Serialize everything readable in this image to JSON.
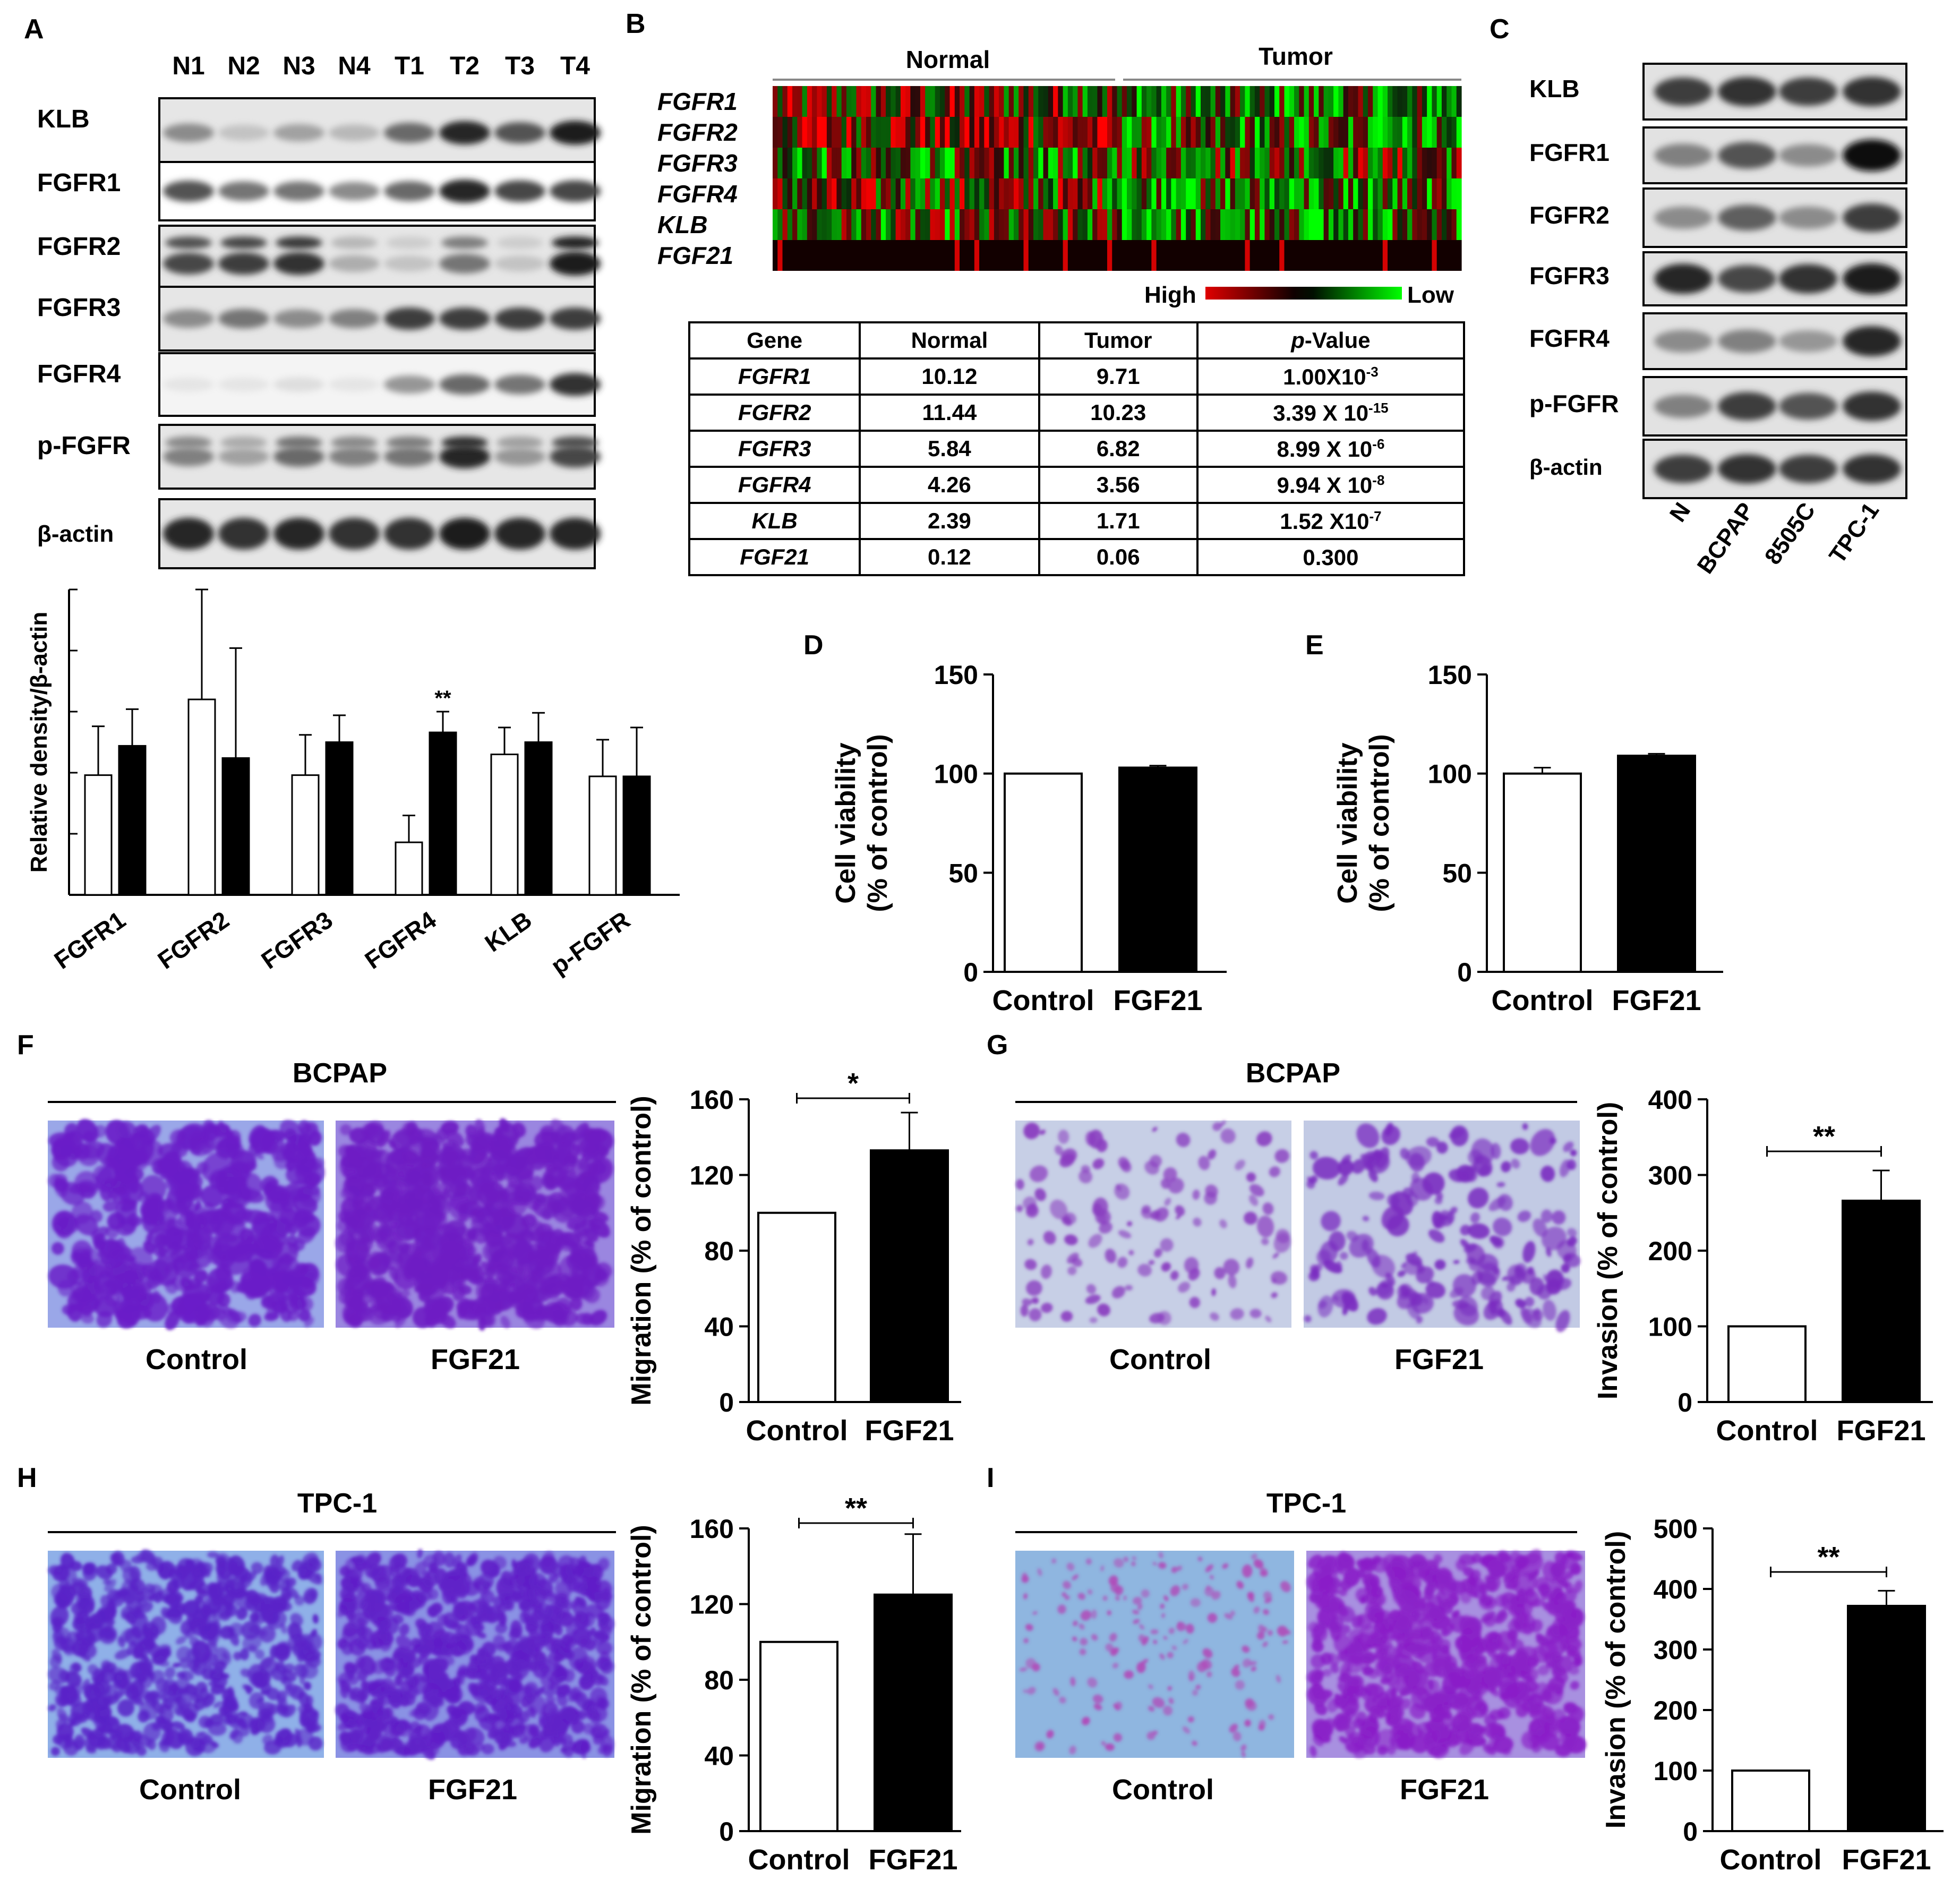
{
  "panel_letters": {
    "A": "A",
    "B": "B",
    "C": "C",
    "D": "D",
    "E": "E",
    "F": "F",
    "G": "G",
    "H": "H",
    "I": "I"
  },
  "panelA": {
    "lanes": [
      "N1",
      "N2",
      "N3",
      "N4",
      "T1",
      "T2",
      "T3",
      "T4"
    ],
    "blots": [
      "KLB",
      "FGFR1",
      "FGFR2",
      "FGFR3",
      "FGFR4",
      "p-FGFR",
      "β-actin"
    ],
    "blot_intensity": [
      [
        0.45,
        0.2,
        0.35,
        0.25,
        0.6,
        0.9,
        0.7,
        0.95
      ],
      [
        0.7,
        0.55,
        0.55,
        0.45,
        0.6,
        0.9,
        0.75,
        0.75
      ],
      [
        0.75,
        0.8,
        0.85,
        0.3,
        0.2,
        0.55,
        0.2,
        0.95
      ],
      [
        0.45,
        0.55,
        0.45,
        0.5,
        0.8,
        0.8,
        0.8,
        0.8
      ],
      [
        0.05,
        0.05,
        0.08,
        0.05,
        0.4,
        0.6,
        0.55,
        0.85
      ],
      [
        0.5,
        0.35,
        0.6,
        0.5,
        0.55,
        0.9,
        0.4,
        0.75
      ],
      [
        0.9,
        0.85,
        0.9,
        0.85,
        0.85,
        0.95,
        0.9,
        0.9
      ]
    ]
  },
  "panelB": {
    "normal_label": "Normal",
    "tumor_label": "Tumor",
    "genes": [
      "FGFR1",
      "FGFR2",
      "FGFR3",
      "FGFR4",
      "KLB",
      "FGF21"
    ],
    "scale_high": "High",
    "scale_low": "Low",
    "table_header": {
      "gene": "Gene",
      "normal": "Normal",
      "tumor": "Tumor",
      "p_prefix": "p",
      "p_suffix": "-Value"
    },
    "table_rows": [
      {
        "gene": "FGFR1",
        "normal": "10.12",
        "tumor": "9.71",
        "p": "1.00X10",
        "exp": "-3"
      },
      {
        "gene": "FGFR2",
        "normal": "11.44",
        "tumor": "10.23",
        "p": "3.39 X 10",
        "exp": "-15"
      },
      {
        "gene": "FGFR3",
        "normal": "5.84",
        "tumor": "6.82",
        "p": "8.99 X 10",
        "exp": "-6"
      },
      {
        "gene": "FGFR4",
        "normal": "4.26",
        "tumor": "3.56",
        "p": "9.94 X 10",
        "exp": "-8"
      },
      {
        "gene": "KLB",
        "normal": "2.39",
        "tumor": "1.71",
        "p": "1.52 X10",
        "exp": "-7"
      },
      {
        "gene": "FGF21",
        "normal": "0.12",
        "tumor": "0.06",
        "p": "0.300",
        "exp": ""
      }
    ]
  },
  "panelC": {
    "blots": [
      "KLB",
      "FGFR1",
      "FGFR2",
      "FGFR3",
      "FGFR4",
      "p-FGFR",
      "β-actin"
    ],
    "lanes": [
      "N",
      "BCPAP",
      "8505C",
      "TPC-1"
    ],
    "blot_intensity": [
      [
        0.8,
        0.85,
        0.8,
        0.85
      ],
      [
        0.5,
        0.7,
        0.45,
        1.0
      ],
      [
        0.45,
        0.65,
        0.45,
        0.8
      ],
      [
        0.9,
        0.75,
        0.85,
        0.95
      ],
      [
        0.45,
        0.5,
        0.4,
        0.9
      ],
      [
        0.5,
        0.8,
        0.7,
        0.85
      ],
      [
        0.8,
        0.85,
        0.8,
        0.85
      ]
    ]
  },
  "photo_labels": {
    "bcpap": "BCPAP",
    "tpc1": "TPC-1",
    "control": "Control",
    "fgf21": "FGF21"
  },
  "chart_data": [
    {
      "panel": "A",
      "type": "bar",
      "ylabel": "Relative density/β-actin",
      "categories": [
        "FGFR1",
        "FGFR2",
        "FGFR3",
        "FGFR4",
        "KLB",
        "p-FGFR"
      ],
      "series": [
        {
          "color": "#ffffff",
          "values": [
            0.98,
            1.6,
            0.98,
            0.43,
            1.15,
            0.97
          ],
          "errors": [
            0.4,
            0.9,
            0.33,
            0.22,
            0.22,
            0.3
          ]
        },
        {
          "color": "#000000",
          "values": [
            1.22,
            1.12,
            1.25,
            1.33,
            1.25,
            0.97
          ],
          "errors": [
            0.3,
            0.9,
            0.22,
            0.17,
            0.24,
            0.4
          ]
        }
      ],
      "ylim": [
        0,
        2.5
      ],
      "annotations": [
        {
          "category": "FGFR4",
          "text": "**"
        }
      ]
    },
    {
      "panel": "D",
      "type": "bar",
      "ylabel": [
        "Cell viability",
        "(% of control)"
      ],
      "categories": [
        "Control",
        "FGF21"
      ],
      "values": [
        100,
        103
      ],
      "errors": [
        0,
        1
      ],
      "colors": [
        "#ffffff",
        "#000000"
      ],
      "ylim": [
        0,
        150
      ],
      "yticks": [
        "0",
        "50",
        "100",
        "150"
      ]
    },
    {
      "panel": "E",
      "type": "bar",
      "ylabel": [
        "Cell viability",
        "(% of control)"
      ],
      "categories": [
        "Control",
        "FGF21"
      ],
      "values": [
        100,
        109
      ],
      "errors": [
        3,
        1
      ],
      "colors": [
        "#ffffff",
        "#000000"
      ],
      "ylim": [
        0,
        150
      ],
      "yticks": [
        "0",
        "50",
        "100",
        "150"
      ]
    },
    {
      "panel": "F",
      "type": "bar",
      "ylabel": [
        "Migration (% of control)"
      ],
      "categories": [
        "Control",
        "FGF21"
      ],
      "values": [
        100,
        133
      ],
      "errors": [
        0,
        20
      ],
      "colors": [
        "#ffffff",
        "#000000"
      ],
      "ylim": [
        0,
        160
      ],
      "yticks": [
        "0",
        "40",
        "80",
        "120",
        "160"
      ],
      "significance": "*"
    },
    {
      "panel": "G",
      "type": "bar",
      "ylabel": [
        "Invasion (% of control)"
      ],
      "categories": [
        "Control",
        "FGF21"
      ],
      "values": [
        100,
        266
      ],
      "errors": [
        0,
        40
      ],
      "colors": [
        "#ffffff",
        "#000000"
      ],
      "ylim": [
        0,
        400
      ],
      "yticks": [
        "0",
        "100",
        "200",
        "300",
        "400"
      ],
      "significance": "**"
    },
    {
      "panel": "H",
      "type": "bar",
      "ylabel": [
        "Migration (% of control)"
      ],
      "categories": [
        "Control",
        "FGF21"
      ],
      "values": [
        100,
        125
      ],
      "errors": [
        0,
        32
      ],
      "colors": [
        "#ffffff",
        "#000000"
      ],
      "ylim": [
        0,
        160
      ],
      "yticks": [
        "0",
        "40",
        "80",
        "120",
        "160"
      ],
      "significance": "**"
    },
    {
      "panel": "I",
      "type": "bar",
      "ylabel": [
        "Invasion (% of control)"
      ],
      "categories": [
        "Control",
        "FGF21"
      ],
      "values": [
        100,
        372
      ],
      "errors": [
        0,
        25
      ],
      "colors": [
        "#ffffff",
        "#000000"
      ],
      "ylim": [
        0,
        500
      ],
      "yticks": [
        "0",
        "100",
        "200",
        "300",
        "400",
        "500"
      ],
      "significance": "**"
    }
  ]
}
